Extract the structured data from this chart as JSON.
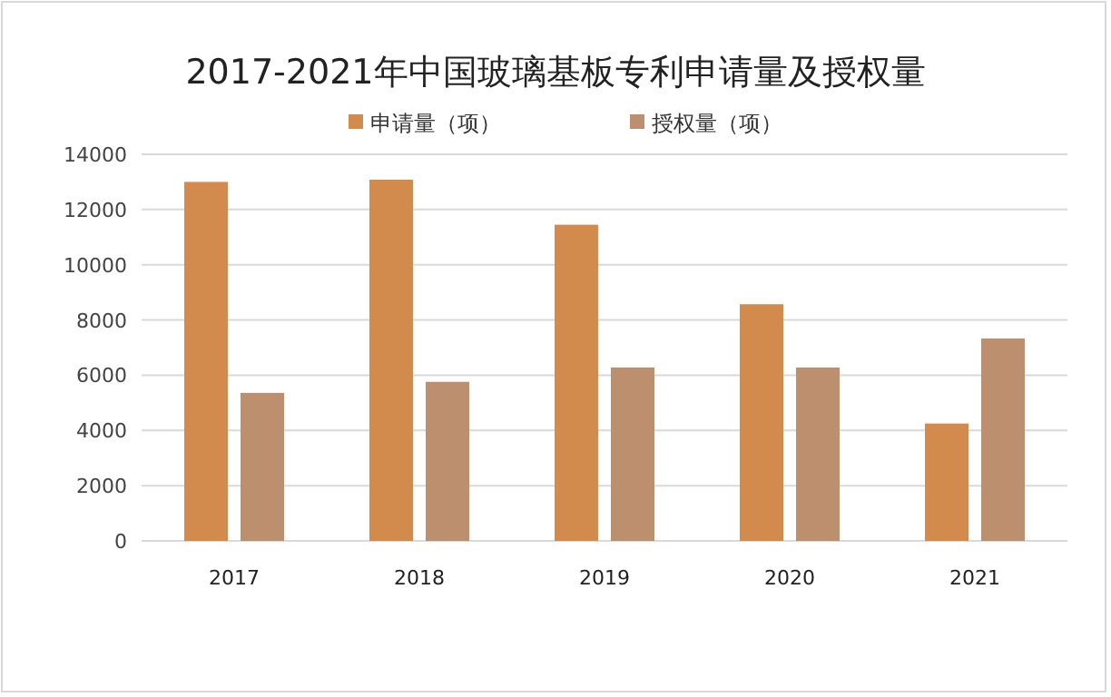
{
  "chart_data": {
    "type": "bar",
    "title": "2017-2021年中国玻璃基板专利申请量及授权量",
    "categories": [
      "2017",
      "2018",
      "2019",
      "2020",
      "2021"
    ],
    "series": [
      {
        "name": "申请量（项）",
        "color": "#d38b4d",
        "values": [
          13000,
          13080,
          11450,
          8570,
          4250
        ]
      },
      {
        "name": "授权量（项）",
        "color": "#bc8f6e",
        "values": [
          5360,
          5760,
          6280,
          6280,
          7330
        ]
      }
    ],
    "ylim": [
      0,
      14000
    ],
    "yticks": [
      0,
      2000,
      4000,
      6000,
      8000,
      10000,
      12000,
      14000
    ],
    "grid": "y",
    "legend": "top"
  }
}
